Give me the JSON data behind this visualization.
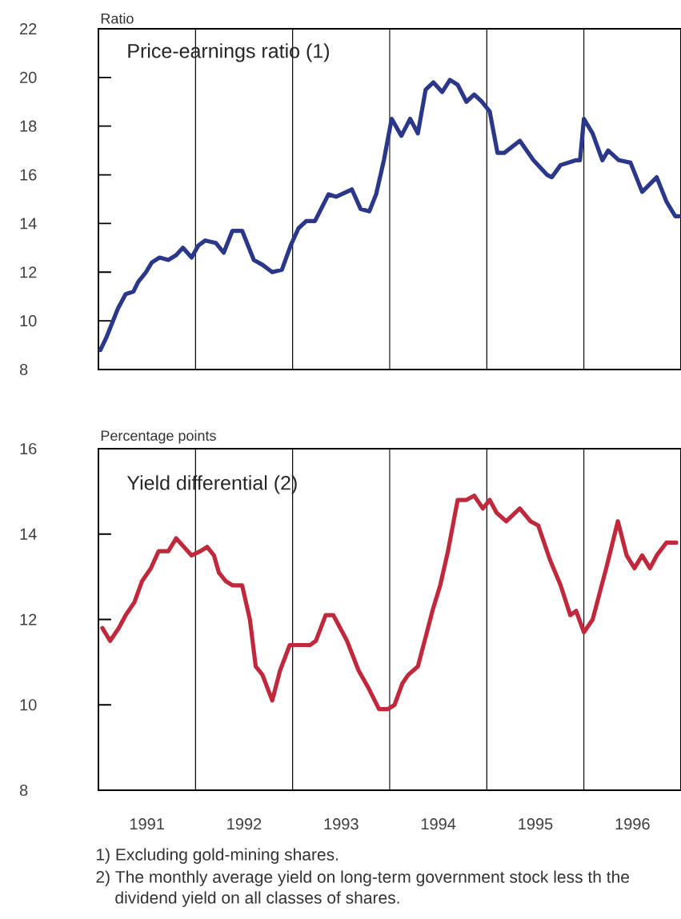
{
  "chart_data": [
    {
      "type": "line",
      "title": "Price-earnings ratio (1)",
      "ylabel": "Ratio",
      "xlim": [
        1991,
        1997
      ],
      "ylim": [
        8,
        22
      ],
      "yticks": [
        8,
        10,
        12,
        14,
        16,
        18,
        20,
        22
      ],
      "tick_labels": "y",
      "ref_lines": [
        {
          "axis": "x",
          "value": 1992,
          "color": "#000000"
        },
        {
          "axis": "x",
          "value": 1993,
          "color": "#000000"
        },
        {
          "axis": "x",
          "value": 1994,
          "color": "#000000"
        },
        {
          "axis": "x",
          "value": 1995,
          "color": "#000000"
        },
        {
          "axis": "x",
          "value": 1996,
          "color": "#000000"
        }
      ],
      "x": [
        1991.02,
        1991.08,
        1991.2,
        1991.28,
        1991.36,
        1991.41,
        1991.49,
        1991.55,
        1991.63,
        1991.72,
        1991.8,
        1991.87,
        1991.96,
        1992.03,
        1992.1,
        1992.21,
        1992.29,
        1992.38,
        1992.48,
        1992.6,
        1992.69,
        1992.79,
        1992.89,
        1992.98,
        1993.06,
        1993.14,
        1993.23,
        1993.37,
        1993.45,
        1993.61,
        1993.7,
        1993.79,
        1993.86,
        1993.94,
        1994.02,
        1994.12,
        1994.21,
        1994.29,
        1994.37,
        1994.45,
        1994.54,
        1994.62,
        1994.7,
        1994.79,
        1994.87,
        1994.95,
        1995.03,
        1995.11,
        1995.18,
        1995.34,
        1995.48,
        1995.62,
        1995.67,
        1995.76,
        1995.92,
        1995.96,
        1996.0,
        1996.09,
        1996.19,
        1996.25,
        1996.36,
        1996.48,
        1996.6,
        1996.75,
        1996.85,
        1996.94,
        1996.98
      ],
      "series": [
        {
          "color": "#2b3889",
          "values": [
            8.8,
            9.3,
            10.5,
            11.1,
            11.2,
            11.6,
            12.0,
            12.4,
            12.6,
            12.5,
            12.7,
            13.0,
            12.6,
            13.1,
            13.3,
            13.2,
            12.8,
            13.7,
            13.7,
            12.5,
            12.3,
            12.0,
            12.1,
            13.1,
            13.8,
            14.1,
            14.1,
            15.2,
            15.1,
            15.4,
            14.6,
            14.5,
            15.2,
            16.6,
            18.3,
            17.6,
            18.3,
            17.7,
            19.5,
            19.8,
            19.4,
            19.9,
            19.7,
            19.0,
            19.3,
            19.0,
            18.6,
            16.9,
            16.9,
            17.4,
            16.6,
            16.0,
            15.9,
            16.4,
            16.6,
            16.6,
            18.3,
            17.7,
            16.6,
            17.0,
            16.6,
            16.5,
            15.3,
            15.9,
            14.9,
            14.3,
            14.3
          ]
        }
      ]
    },
    {
      "type": "line",
      "title": "Yield differential (2)",
      "ylabel": "Percentage points",
      "xlim": [
        1991,
        1997
      ],
      "ylim": [
        8,
        16
      ],
      "yticks": [
        8,
        10,
        12,
        14,
        16
      ],
      "xticks": [
        {
          "value": 1991.5,
          "label": "1991"
        },
        {
          "value": 1992.5,
          "label": "1992"
        },
        {
          "value": 1993.5,
          "label": "1993"
        },
        {
          "value": 1994.5,
          "label": "1994"
        },
        {
          "value": 1995.5,
          "label": "1995"
        },
        {
          "value": 1996.5,
          "label": "1996"
        }
      ],
      "ref_lines": [
        {
          "axis": "x",
          "value": 1992,
          "color": "#000000"
        },
        {
          "axis": "x",
          "value": 1993,
          "color": "#000000"
        },
        {
          "axis": "x",
          "value": 1994,
          "color": "#000000"
        },
        {
          "axis": "x",
          "value": 1995,
          "color": "#000000"
        },
        {
          "axis": "x",
          "value": 1996,
          "color": "#000000"
        }
      ],
      "annotations": [
        "1) Excluding gold-mining shares.",
        "2) The monthly average yield on long-term government stock less th the dividend yield on all classes of shares."
      ],
      "x": [
        1991.04,
        1991.12,
        1991.21,
        1991.28,
        1991.37,
        1991.45,
        1991.54,
        1991.62,
        1991.72,
        1991.8,
        1991.88,
        1991.96,
        1992.05,
        1992.12,
        1992.19,
        1992.24,
        1992.31,
        1992.38,
        1992.48,
        1992.56,
        1992.62,
        1992.69,
        1992.79,
        1992.87,
        1992.97,
        1993.04,
        1993.18,
        1993.24,
        1993.34,
        1993.42,
        1993.56,
        1993.68,
        1993.78,
        1993.89,
        1993.98,
        1994.05,
        1994.13,
        1994.19,
        1994.29,
        1994.36,
        1994.44,
        1994.52,
        1994.6,
        1994.7,
        1994.79,
        1994.87,
        1994.96,
        1995.03,
        1995.1,
        1995.2,
        1995.34,
        1995.45,
        1995.53,
        1995.65,
        1995.76,
        1995.86,
        1995.92,
        1996.0,
        1996.09,
        1996.23,
        1996.35,
        1996.44,
        1996.52,
        1996.6,
        1996.68,
        1996.75,
        1996.85,
        1996.95
      ],
      "series": [
        {
          "color": "#c0283c",
          "values": [
            11.8,
            11.5,
            11.8,
            12.1,
            12.4,
            12.9,
            13.2,
            13.6,
            13.6,
            13.9,
            13.7,
            13.5,
            13.6,
            13.7,
            13.5,
            13.1,
            12.9,
            12.8,
            12.8,
            12.0,
            10.9,
            10.7,
            10.1,
            10.8,
            11.4,
            11.4,
            11.4,
            11.5,
            12.1,
            12.1,
            11.5,
            10.8,
            10.4,
            9.9,
            9.9,
            10.0,
            10.5,
            10.7,
            10.9,
            11.5,
            12.2,
            12.8,
            13.6,
            14.8,
            14.8,
            14.9,
            14.6,
            14.8,
            14.5,
            14.3,
            14.6,
            14.3,
            14.2,
            13.4,
            12.8,
            12.1,
            12.2,
            11.7,
            12.0,
            13.2,
            14.3,
            13.5,
            13.2,
            13.5,
            13.2,
            13.5,
            13.8,
            13.8
          ]
        }
      ]
    }
  ]
}
